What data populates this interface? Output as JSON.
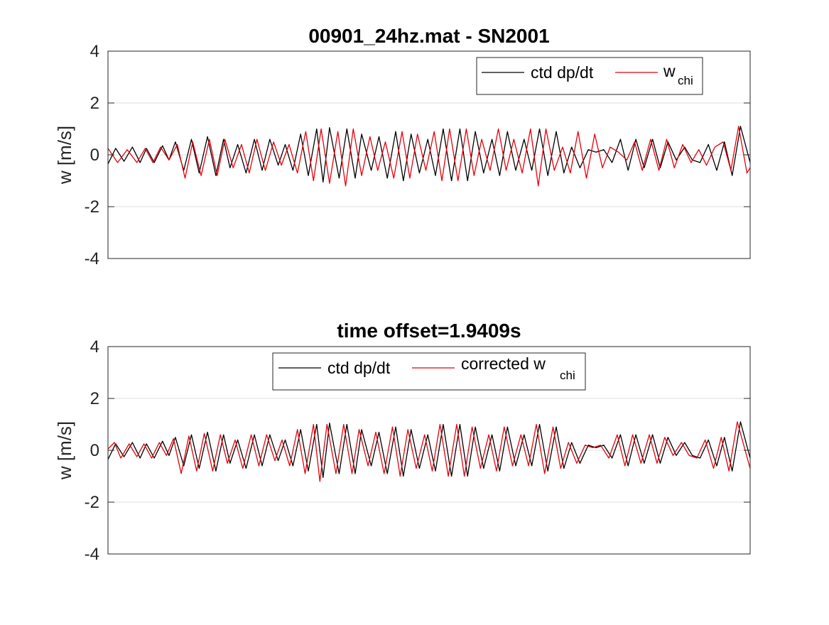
{
  "chart_data": [
    {
      "type": "line",
      "title": "00901_24hz.mat - SN2001",
      "xlabel": "",
      "ylabel": "w [m/s]",
      "ylim": [
        -4,
        4
      ],
      "yticks": [
        "4",
        "2",
        "0",
        "-2",
        "-4"
      ],
      "ytick_values": [
        4,
        2,
        0,
        -2,
        -4
      ],
      "xlim": [
        0,
        1
      ],
      "x_ticks_shown": false,
      "grid": true,
      "legend": {
        "placement": "top-right",
        "entries": [
          {
            "label": "ctd dp/dt",
            "color": "#000000",
            "subscript": ""
          },
          {
            "label": "w",
            "color": "#e8000b",
            "subscript": "chi"
          }
        ]
      },
      "series": [
        {
          "name": "ctd dp/dt",
          "color": "#000000",
          "x": [
            0.0,
            0.012,
            0.025,
            0.038,
            0.05,
            0.06,
            0.072,
            0.085,
            0.095,
            0.105,
            0.118,
            0.13,
            0.142,
            0.155,
            0.168,
            0.18,
            0.19,
            0.202,
            0.215,
            0.228,
            0.24,
            0.252,
            0.265,
            0.276,
            0.288,
            0.3,
            0.312,
            0.325,
            0.335,
            0.345,
            0.36,
            0.372,
            0.385,
            0.395,
            0.41,
            0.422,
            0.435,
            0.448,
            0.46,
            0.472,
            0.485,
            0.498,
            0.51,
            0.522,
            0.535,
            0.548,
            0.56,
            0.572,
            0.585,
            0.598,
            0.61,
            0.622,
            0.635,
            0.648,
            0.66,
            0.672,
            0.685,
            0.698,
            0.71,
            0.722,
            0.735,
            0.748,
            0.76,
            0.772,
            0.785,
            0.798,
            0.81,
            0.822,
            0.835,
            0.848,
            0.86,
            0.872,
            0.885,
            0.898,
            0.91,
            0.922,
            0.935,
            0.948,
            0.96,
            0.972,
            0.985,
            1.0
          ],
          "y": [
            -0.35,
            0.25,
            -0.25,
            0.3,
            -0.3,
            0.25,
            -0.3,
            0.35,
            -0.2,
            0.5,
            -0.6,
            0.6,
            -0.7,
            0.7,
            -0.8,
            0.6,
            -0.5,
            0.4,
            -0.7,
            0.6,
            -0.6,
            0.6,
            -0.4,
            0.4,
            -0.6,
            0.8,
            -0.8,
            1.0,
            -1.05,
            1.05,
            -0.9,
            1.0,
            -0.9,
            0.8,
            -0.6,
            0.7,
            -0.9,
            0.9,
            -1.0,
            0.8,
            -0.7,
            0.6,
            -0.8,
            1.0,
            -1.0,
            1.0,
            -1.0,
            0.9,
            -0.7,
            0.6,
            -0.8,
            0.9,
            -0.6,
            0.6,
            -0.6,
            1.0,
            -0.8,
            0.9,
            -0.7,
            0.3,
            -0.5,
            0.2,
            0.1,
            0.2,
            -0.3,
            0.6,
            -0.6,
            0.6,
            -0.5,
            0.6,
            -0.5,
            0.5,
            -0.2,
            0.3,
            -0.2,
            -0.3,
            0.4,
            -0.6,
            0.5,
            -0.8,
            1.1,
            -0.3
          ],
          "values_estimated": true
        },
        {
          "name": "w_chi",
          "color": "#e8000b",
          "x": [
            0.0,
            0.015,
            0.03,
            0.045,
            0.058,
            0.07,
            0.082,
            0.095,
            0.108,
            0.12,
            0.132,
            0.145,
            0.158,
            0.17,
            0.182,
            0.195,
            0.208,
            0.22,
            0.232,
            0.245,
            0.258,
            0.27,
            0.282,
            0.295,
            0.308,
            0.32,
            0.332,
            0.345,
            0.358,
            0.37,
            0.382,
            0.395,
            0.408,
            0.42,
            0.432,
            0.445,
            0.458,
            0.47,
            0.482,
            0.495,
            0.508,
            0.52,
            0.532,
            0.545,
            0.558,
            0.57,
            0.582,
            0.595,
            0.608,
            0.62,
            0.632,
            0.645,
            0.658,
            0.67,
            0.682,
            0.695,
            0.708,
            0.72,
            0.732,
            0.745,
            0.758,
            0.77,
            0.782,
            0.795,
            0.808,
            0.82,
            0.832,
            0.845,
            0.858,
            0.87,
            0.882,
            0.895,
            0.908,
            0.92,
            0.932,
            0.945,
            0.958,
            0.97,
            0.982,
            0.995,
            1.0
          ],
          "y": [
            0.25,
            -0.3,
            0.2,
            -0.3,
            0.25,
            -0.3,
            0.3,
            -0.2,
            0.4,
            -0.9,
            0.5,
            -0.8,
            0.6,
            -0.8,
            0.6,
            -0.5,
            0.4,
            -0.7,
            0.6,
            -0.6,
            0.5,
            -0.4,
            0.4,
            -0.7,
            0.9,
            -1.0,
            1.0,
            -1.1,
            0.9,
            -1.2,
            1.0,
            -0.8,
            0.7,
            -0.6,
            0.5,
            -0.9,
            0.9,
            -0.9,
            0.8,
            -0.6,
            0.9,
            -1.0,
            1.0,
            -1.0,
            1.0,
            -0.8,
            0.6,
            -0.6,
            1.0,
            -0.6,
            0.6,
            -0.7,
            1.0,
            -1.2,
            1.0,
            -0.6,
            0.3,
            -0.7,
            0.9,
            -0.9,
            0.8,
            -0.5,
            0.3,
            0.1,
            -0.2,
            0.5,
            -0.6,
            0.6,
            -0.6,
            0.6,
            -0.5,
            0.4,
            -0.3,
            0.2,
            -0.4,
            0.3,
            0.5,
            -0.6,
            1.1,
            -0.7,
            -0.5
          ],
          "values_estimated": true
        }
      ]
    },
    {
      "type": "line",
      "title": "time offset=1.9409s",
      "xlabel": "",
      "ylabel": "w [m/s]",
      "ylim": [
        -4,
        4
      ],
      "yticks": [
        "4",
        "2",
        "0",
        "-2",
        "-4"
      ],
      "ytick_values": [
        4,
        2,
        0,
        -2,
        -4
      ],
      "xlim": [
        0,
        1
      ],
      "x_ticks_shown": false,
      "grid": true,
      "legend": {
        "placement": "top",
        "entries": [
          {
            "label": "ctd dp/dt",
            "color": "#000000",
            "subscript": ""
          },
          {
            "label": "corrected w",
            "color": "#e8000b",
            "subscript": "chi"
          }
        ]
      },
      "series": [
        {
          "name": "ctd dp/dt",
          "color": "#000000",
          "x": [
            0.0,
            0.012,
            0.025,
            0.038,
            0.05,
            0.06,
            0.072,
            0.085,
            0.095,
            0.105,
            0.118,
            0.13,
            0.142,
            0.155,
            0.168,
            0.18,
            0.19,
            0.202,
            0.215,
            0.228,
            0.24,
            0.252,
            0.265,
            0.276,
            0.288,
            0.3,
            0.312,
            0.325,
            0.335,
            0.345,
            0.36,
            0.372,
            0.385,
            0.395,
            0.41,
            0.422,
            0.435,
            0.448,
            0.46,
            0.472,
            0.485,
            0.498,
            0.51,
            0.522,
            0.535,
            0.548,
            0.56,
            0.572,
            0.585,
            0.598,
            0.61,
            0.622,
            0.635,
            0.648,
            0.66,
            0.672,
            0.685,
            0.698,
            0.71,
            0.722,
            0.735,
            0.748,
            0.76,
            0.772,
            0.785,
            0.798,
            0.81,
            0.822,
            0.835,
            0.848,
            0.86,
            0.872,
            0.885,
            0.898,
            0.91,
            0.922,
            0.935,
            0.948,
            0.96,
            0.972,
            0.985,
            1.0
          ],
          "y": [
            -0.35,
            0.25,
            -0.25,
            0.3,
            -0.3,
            0.25,
            -0.3,
            0.35,
            -0.2,
            0.5,
            -0.6,
            0.6,
            -0.7,
            0.7,
            -0.8,
            0.6,
            -0.5,
            0.4,
            -0.7,
            0.6,
            -0.6,
            0.6,
            -0.4,
            0.4,
            -0.6,
            0.8,
            -0.8,
            1.0,
            -1.05,
            1.05,
            -0.9,
            1.0,
            -0.9,
            0.8,
            -0.6,
            0.7,
            -0.9,
            0.9,
            -1.0,
            0.8,
            -0.7,
            0.6,
            -0.8,
            1.0,
            -1.0,
            1.0,
            -1.0,
            0.9,
            -0.7,
            0.6,
            -0.8,
            0.9,
            -0.6,
            0.6,
            -0.6,
            1.0,
            -0.8,
            0.9,
            -0.7,
            0.3,
            -0.5,
            0.2,
            0.1,
            0.2,
            -0.3,
            0.6,
            -0.6,
            0.6,
            -0.5,
            0.6,
            -0.5,
            0.5,
            -0.2,
            0.3,
            -0.2,
            -0.3,
            0.4,
            -0.6,
            0.5,
            -0.8,
            1.1,
            -0.3
          ],
          "values_estimated": true
        },
        {
          "name": "corrected w_chi",
          "color": "#e8000b",
          "x": [
            0.0,
            0.01,
            0.02,
            0.033,
            0.045,
            0.056,
            0.068,
            0.08,
            0.091,
            0.102,
            0.114,
            0.126,
            0.138,
            0.15,
            0.163,
            0.175,
            0.186,
            0.198,
            0.21,
            0.223,
            0.235,
            0.247,
            0.26,
            0.271,
            0.283,
            0.295,
            0.307,
            0.32,
            0.33,
            0.341,
            0.355,
            0.367,
            0.38,
            0.391,
            0.405,
            0.417,
            0.43,
            0.443,
            0.455,
            0.467,
            0.48,
            0.493,
            0.505,
            0.517,
            0.53,
            0.543,
            0.555,
            0.567,
            0.58,
            0.593,
            0.605,
            0.617,
            0.63,
            0.643,
            0.655,
            0.667,
            0.68,
            0.693,
            0.705,
            0.717,
            0.73,
            0.743,
            0.755,
            0.767,
            0.78,
            0.793,
            0.805,
            0.817,
            0.83,
            0.843,
            0.855,
            0.867,
            0.88,
            0.893,
            0.905,
            0.917,
            0.93,
            0.943,
            0.955,
            0.967,
            0.98,
            1.0
          ],
          "y": [
            0.05,
            0.3,
            -0.3,
            0.25,
            -0.25,
            0.25,
            -0.3,
            0.3,
            -0.2,
            0.45,
            -0.9,
            0.55,
            -0.8,
            0.65,
            -0.8,
            0.6,
            -0.5,
            0.4,
            -0.7,
            0.6,
            -0.6,
            0.6,
            -0.4,
            0.4,
            -0.6,
            0.8,
            -0.9,
            1.0,
            -1.2,
            1.0,
            -0.9,
            1.0,
            -0.9,
            0.8,
            -0.6,
            0.7,
            -0.9,
            0.9,
            -1.0,
            0.8,
            -0.7,
            0.6,
            -0.8,
            1.0,
            -1.0,
            1.0,
            -1.0,
            0.9,
            -0.7,
            0.6,
            -0.8,
            0.9,
            -0.6,
            0.6,
            -0.6,
            1.0,
            -0.9,
            0.9,
            -0.7,
            0.3,
            -0.5,
            0.2,
            0.1,
            0.2,
            -0.3,
            0.6,
            -0.6,
            0.6,
            -0.5,
            0.6,
            -0.5,
            0.5,
            -0.2,
            0.3,
            -0.2,
            -0.3,
            0.4,
            -0.7,
            0.5,
            -0.8,
            1.1,
            -0.7
          ],
          "values_estimated": true
        }
      ]
    }
  ]
}
